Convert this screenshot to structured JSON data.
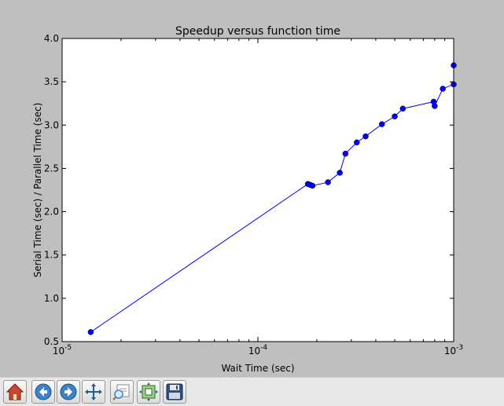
{
  "chart_data": {
    "type": "line",
    "title": "Speedup versus function time",
    "xlabel": "Wait Time (sec)",
    "ylabel": "Serial Time (sec) / Parallel Time (sec)",
    "xscale": "log",
    "xlim": [
      1e-05,
      0.001
    ],
    "ylim": [
      0.5,
      4.0
    ],
    "grid": false,
    "color": "#0000ff",
    "x_ticks": [
      {
        "value": 1e-05,
        "base": "10",
        "exp": "-5"
      },
      {
        "value": 0.0001,
        "base": "10",
        "exp": "-4"
      },
      {
        "value": 0.001,
        "base": "10",
        "exp": "-3"
      }
    ],
    "y_ticks": [
      {
        "value": 0.5,
        "label": "0.5"
      },
      {
        "value": 1.0,
        "label": "1.0"
      },
      {
        "value": 1.5,
        "label": "1.5"
      },
      {
        "value": 2.0,
        "label": "2.0"
      },
      {
        "value": 2.5,
        "label": "2.5"
      },
      {
        "value": 3.0,
        "label": "3.0"
      },
      {
        "value": 3.5,
        "label": "3.5"
      },
      {
        "value": 4.0,
        "label": "4.0"
      }
    ],
    "series": [
      {
        "x": [
          1.4e-05,
          0.00018,
          0.000185,
          0.00019,
          0.000228,
          0.000262,
          0.00028,
          0.00032,
          0.000355,
          0.00043,
          0.0005,
          0.00055,
          0.00079,
          0.0008,
          0.00088,
          0.001,
          0.001
        ],
        "y": [
          0.61,
          2.32,
          2.31,
          2.3,
          2.34,
          2.45,
          2.67,
          2.8,
          2.87,
          3.01,
          3.1,
          3.19,
          3.27,
          3.22,
          3.42,
          3.47,
          3.69
        ]
      }
    ]
  },
  "toolbar": {
    "buttons": [
      {
        "icon": "home-icon"
      },
      {
        "icon": "back-arrow-icon"
      },
      {
        "icon": "forward-arrow-icon"
      },
      {
        "icon": "pan-move-icon"
      },
      {
        "icon": "zoom-rect-icon"
      },
      {
        "icon": "subplots-configure-icon"
      },
      {
        "icon": "save-disk-icon"
      }
    ]
  }
}
